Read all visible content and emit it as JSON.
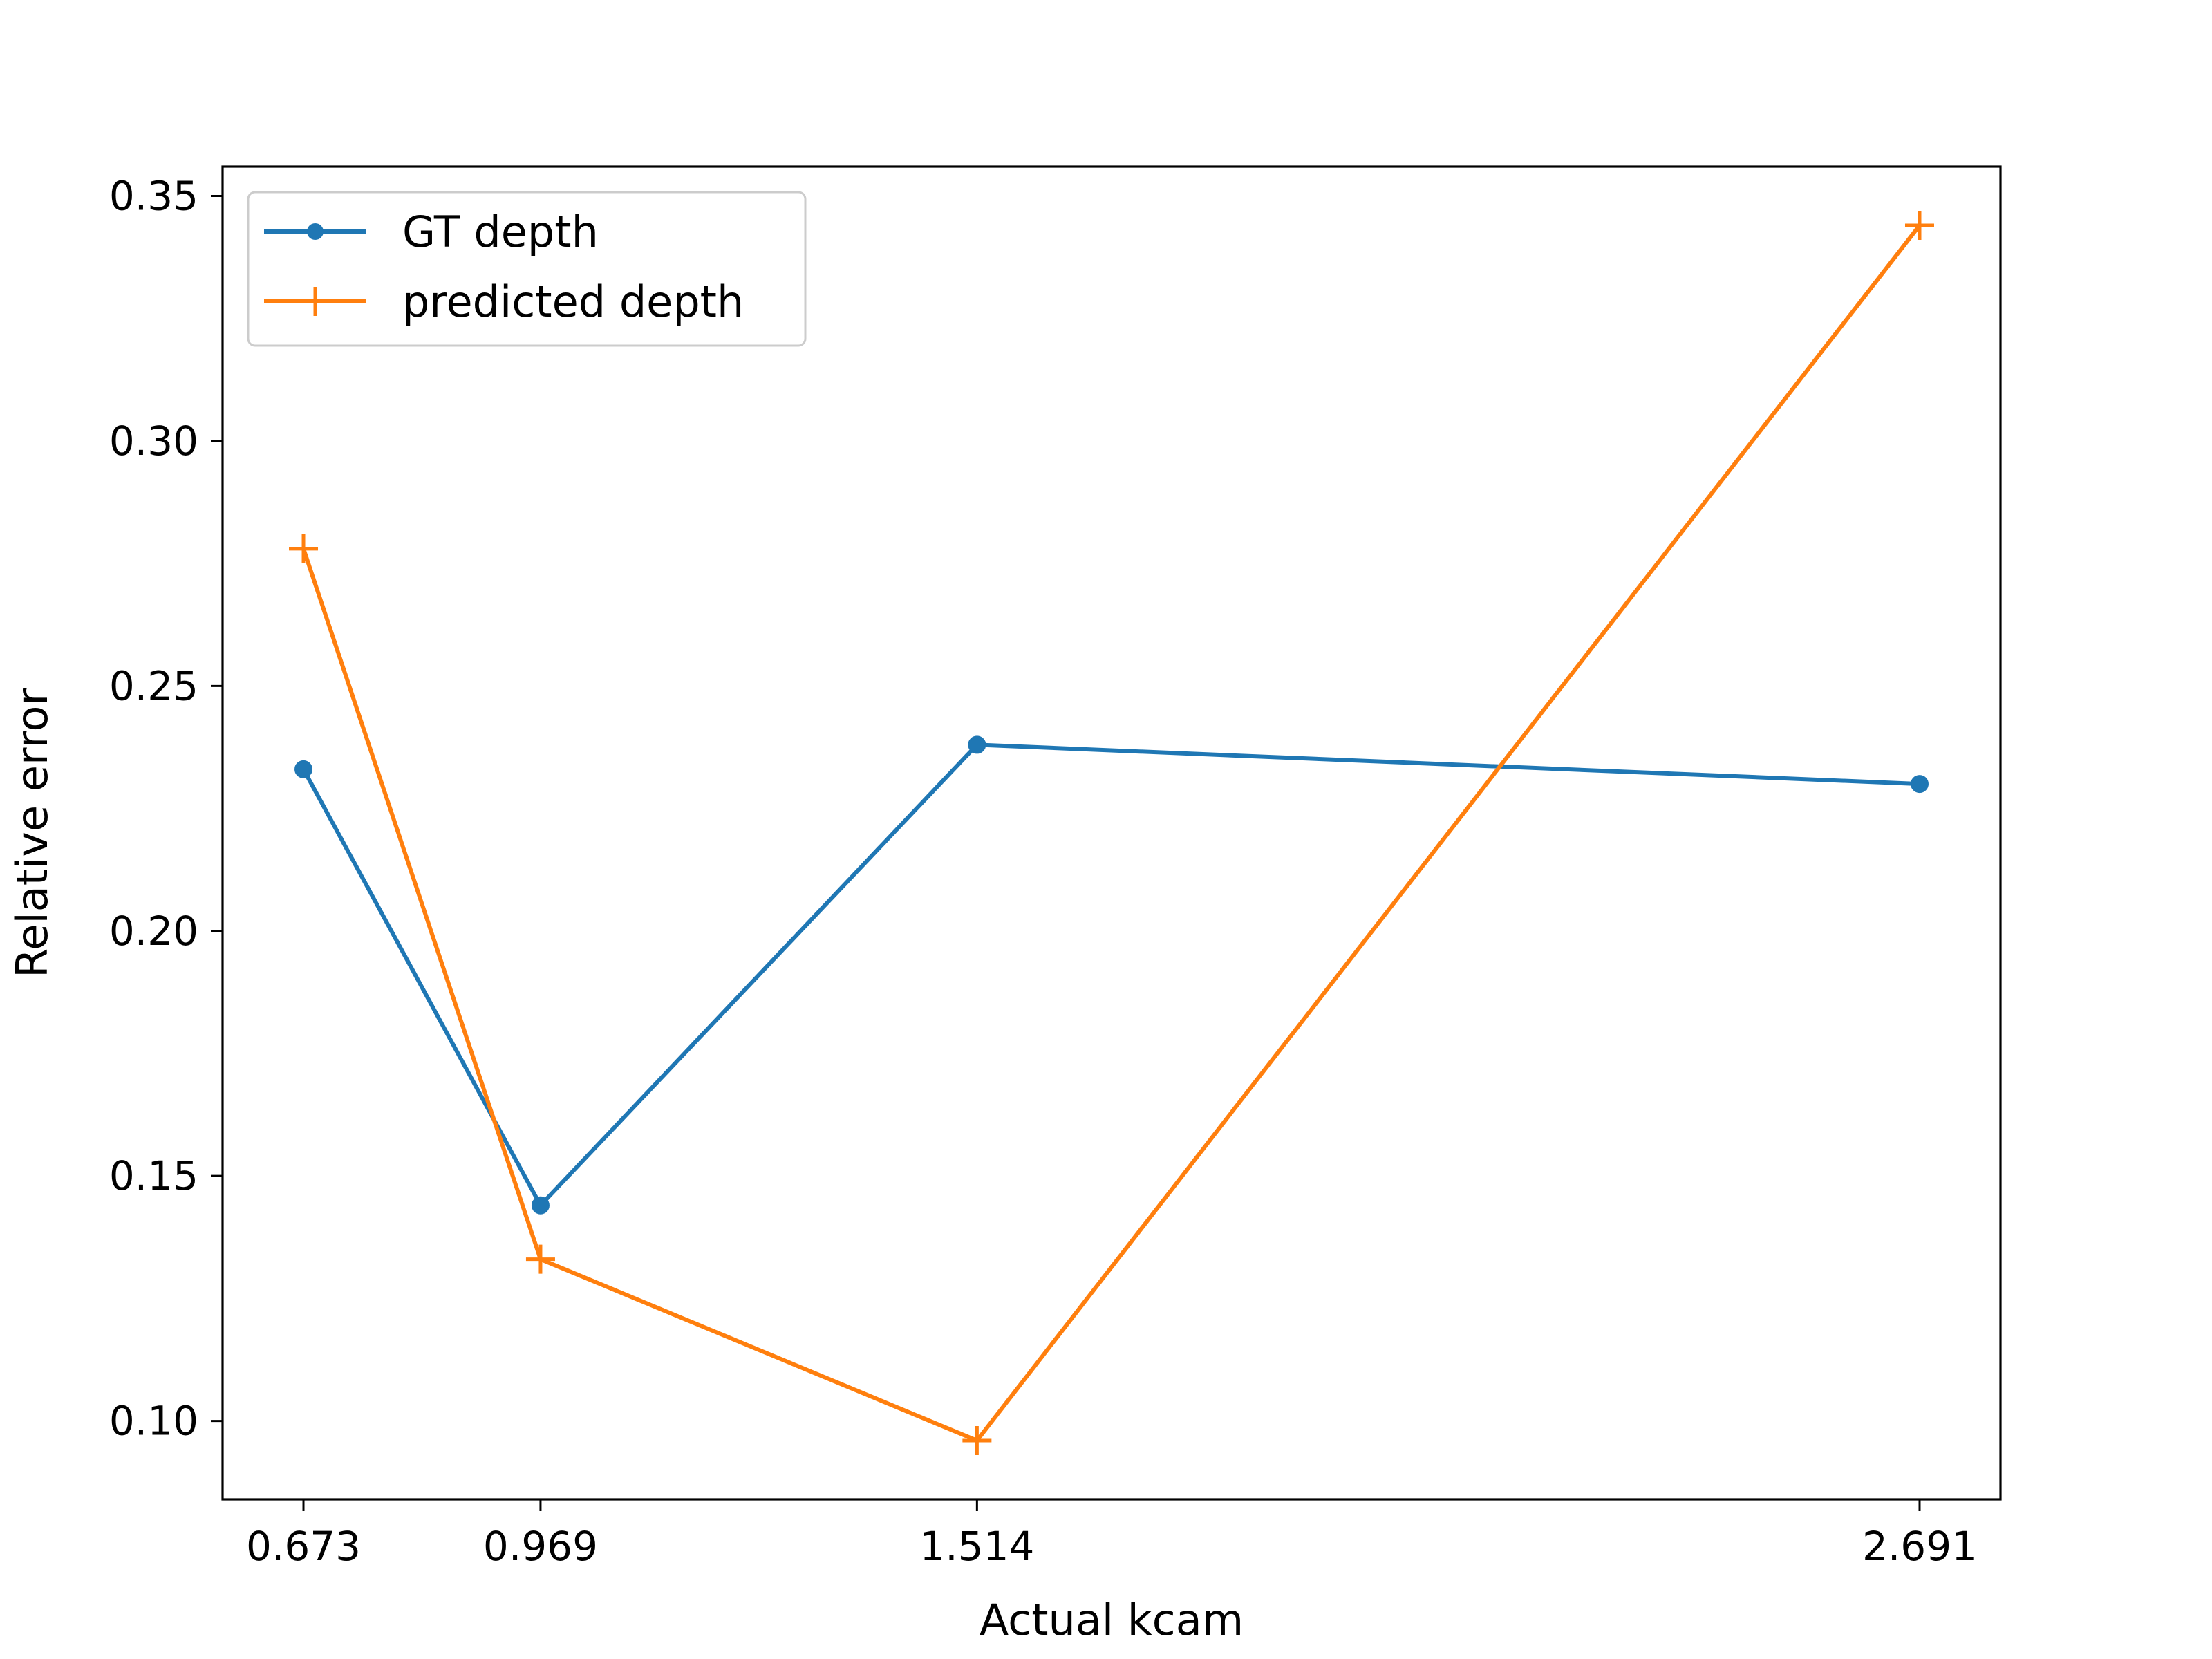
{
  "chart_data": {
    "type": "line",
    "title": "",
    "xlabel": "Actual kcam",
    "ylabel": "Relative error",
    "x": [
      0.673,
      0.969,
      1.514,
      2.691
    ],
    "x_tick_labels": [
      "0.673",
      "0.969",
      "1.514",
      "2.691"
    ],
    "xlim": [
      0.572,
      2.792
    ],
    "ylim": [
      0.084,
      0.356
    ],
    "y_ticks": [
      0.1,
      0.15,
      0.2,
      0.25,
      0.3,
      0.35
    ],
    "y_tick_labels": [
      "0.10",
      "0.15",
      "0.20",
      "0.25",
      "0.30",
      "0.35"
    ],
    "grid": false,
    "legend_position": "top-left",
    "series": [
      {
        "name": "GT depth",
        "color": "#1f77b4",
        "marker": "circle",
        "values": [
          0.233,
          0.144,
          0.238,
          0.23
        ]
      },
      {
        "name": "predicted depth",
        "color": "#ff7f0e",
        "marker": "plus",
        "values": [
          0.278,
          0.133,
          0.096,
          0.344
        ]
      }
    ]
  }
}
